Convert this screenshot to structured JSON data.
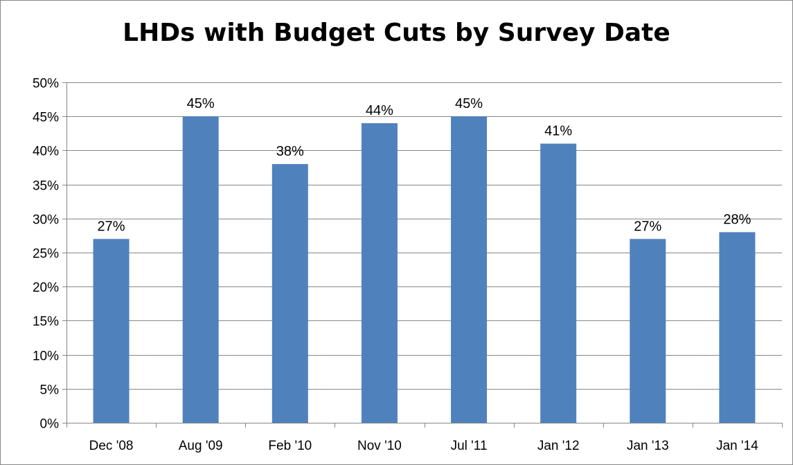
{
  "chart_data": {
    "type": "bar",
    "title": "LHDs with Budget Cuts by Survey Date",
    "categories": [
      "Dec '08",
      "Aug '09",
      "Feb '10",
      "Nov '10",
      "Jul '11",
      "Jan '12",
      "Jan '13",
      "Jan '14"
    ],
    "values": [
      27,
      45,
      38,
      44,
      45,
      41,
      27,
      28
    ],
    "data_labels": [
      "27%",
      "45%",
      "38%",
      "44%",
      "45%",
      "41%",
      "27%",
      "28%"
    ],
    "ylim": [
      0,
      50
    ],
    "yticks": [
      0,
      5,
      10,
      15,
      20,
      25,
      30,
      35,
      40,
      45,
      50
    ],
    "ytick_labels": [
      "0%",
      "5%",
      "10%",
      "15%",
      "20%",
      "25%",
      "30%",
      "35%",
      "40%",
      "45%",
      "50%"
    ],
    "grid": true,
    "legend": "none",
    "colors": {
      "bar": "#4F81BD",
      "grid": "#868686",
      "axis": "#868686"
    }
  }
}
